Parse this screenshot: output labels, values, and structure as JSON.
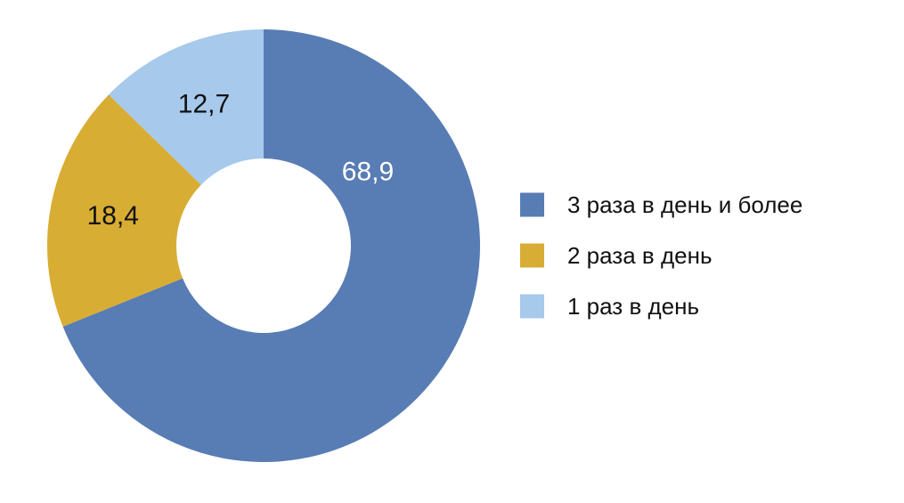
{
  "chart_data": {
    "type": "pie",
    "donut": true,
    "categories": [
      "3 раза в день и более",
      "2 раза в день",
      "1 раз в день"
    ],
    "values": [
      68.9,
      18.4,
      12.7
    ],
    "value_labels": [
      "68,9",
      "18,4",
      "12,7"
    ],
    "colors": [
      "#587cb4",
      "#d8ad34",
      "#a6c9ec"
    ],
    "label_colors": [
      "#ffffff",
      "#111111",
      "#111111"
    ],
    "legend_position": "right",
    "start_angle": "12 o'clock",
    "direction": "clockwise"
  }
}
